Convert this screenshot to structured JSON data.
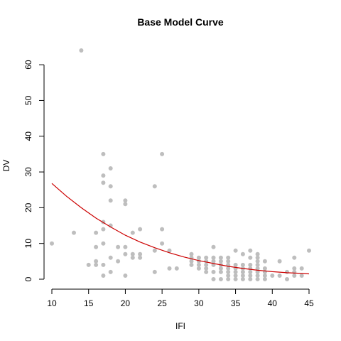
{
  "chart_data": {
    "type": "scatter",
    "title": "Base Model Curve",
    "xlabel": "IFI",
    "ylabel": "DV",
    "xlim": [
      10,
      45
    ],
    "ylim": [
      0,
      64
    ],
    "x_ticks": [
      10,
      15,
      20,
      25,
      30,
      35,
      40,
      45
    ],
    "y_ticks": [
      0,
      10,
      20,
      30,
      40,
      50,
      60
    ],
    "grid": false,
    "colors": {
      "points": "#bebebe",
      "curve": "#cc0000",
      "axis": "#000000"
    },
    "series": [
      {
        "type": "scatter",
        "points": [
          [
            10,
            10
          ],
          [
            13,
            13
          ],
          [
            14,
            64
          ],
          [
            15,
            4
          ],
          [
            16,
            13
          ],
          [
            16,
            9
          ],
          [
            16,
            5
          ],
          [
            16,
            4
          ],
          [
            17,
            35
          ],
          [
            17,
            29
          ],
          [
            17,
            27
          ],
          [
            17,
            16
          ],
          [
            17,
            14
          ],
          [
            17,
            10
          ],
          [
            17,
            4
          ],
          [
            17,
            1
          ],
          [
            18,
            31
          ],
          [
            18,
            26
          ],
          [
            18,
            22
          ],
          [
            18,
            15
          ],
          [
            18,
            6
          ],
          [
            18,
            2
          ],
          [
            19,
            9
          ],
          [
            19,
            5
          ],
          [
            20,
            22
          ],
          [
            20,
            21
          ],
          [
            20,
            9
          ],
          [
            20,
            7
          ],
          [
            20,
            1
          ],
          [
            21,
            13
          ],
          [
            21,
            7
          ],
          [
            21,
            6
          ],
          [
            22,
            14
          ],
          [
            22,
            7
          ],
          [
            22,
            6
          ],
          [
            24,
            26
          ],
          [
            24,
            8
          ],
          [
            24,
            2
          ],
          [
            25,
            35
          ],
          [
            25,
            14
          ],
          [
            25,
            10
          ],
          [
            26,
            8
          ],
          [
            26,
            3
          ],
          [
            27,
            3
          ],
          [
            29,
            7
          ],
          [
            29,
            6
          ],
          [
            29,
            5
          ],
          [
            29,
            4
          ],
          [
            30,
            6
          ],
          [
            30,
            5
          ],
          [
            30,
            4
          ],
          [
            30,
            3
          ],
          [
            31,
            6
          ],
          [
            31,
            5
          ],
          [
            31,
            4
          ],
          [
            31,
            3
          ],
          [
            31,
            2
          ],
          [
            32,
            9
          ],
          [
            32,
            6
          ],
          [
            32,
            5
          ],
          [
            32,
            4
          ],
          [
            32,
            2
          ],
          [
            32,
            0
          ],
          [
            33,
            6
          ],
          [
            33,
            5
          ],
          [
            33,
            4
          ],
          [
            33,
            3
          ],
          [
            33,
            2
          ],
          [
            33,
            0
          ],
          [
            34,
            6
          ],
          [
            34,
            5
          ],
          [
            34,
            4
          ],
          [
            34,
            3
          ],
          [
            34,
            2
          ],
          [
            34,
            1
          ],
          [
            34,
            0
          ],
          [
            35,
            8
          ],
          [
            35,
            4
          ],
          [
            35,
            3
          ],
          [
            35,
            2
          ],
          [
            35,
            1
          ],
          [
            35,
            0
          ],
          [
            36,
            7
          ],
          [
            36,
            4
          ],
          [
            36,
            3
          ],
          [
            36,
            2
          ],
          [
            36,
            1
          ],
          [
            36,
            0
          ],
          [
            37,
            8
          ],
          [
            37,
            6
          ],
          [
            37,
            4
          ],
          [
            37,
            3
          ],
          [
            37,
            2
          ],
          [
            37,
            1
          ],
          [
            37,
            0
          ],
          [
            38,
            7
          ],
          [
            38,
            6
          ],
          [
            38,
            5
          ],
          [
            38,
            4
          ],
          [
            38,
            3
          ],
          [
            38,
            2
          ],
          [
            38,
            1
          ],
          [
            38,
            0
          ],
          [
            39,
            5
          ],
          [
            39,
            3
          ],
          [
            39,
            2
          ],
          [
            39,
            1
          ],
          [
            39,
            0
          ],
          [
            40,
            1
          ],
          [
            41,
            5
          ],
          [
            41,
            1
          ],
          [
            42,
            2
          ],
          [
            42,
            0
          ],
          [
            43,
            6
          ],
          [
            43,
            3
          ],
          [
            43,
            2
          ],
          [
            43,
            1
          ],
          [
            44,
            3
          ],
          [
            44,
            1
          ],
          [
            45,
            8
          ]
        ]
      },
      {
        "type": "line",
        "x": [
          10,
          12,
          14,
          16,
          18,
          20,
          22,
          24,
          26,
          28,
          30,
          32,
          34,
          36,
          38,
          40,
          42,
          44,
          45
        ],
        "y": [
          26.8,
          23.2,
          20.0,
          17.1,
          14.6,
          12.3,
          10.4,
          8.8,
          7.4,
          6.2,
          5.2,
          4.4,
          3.6,
          3.0,
          2.5,
          2.1,
          1.8,
          1.6,
          1.5
        ]
      }
    ]
  }
}
